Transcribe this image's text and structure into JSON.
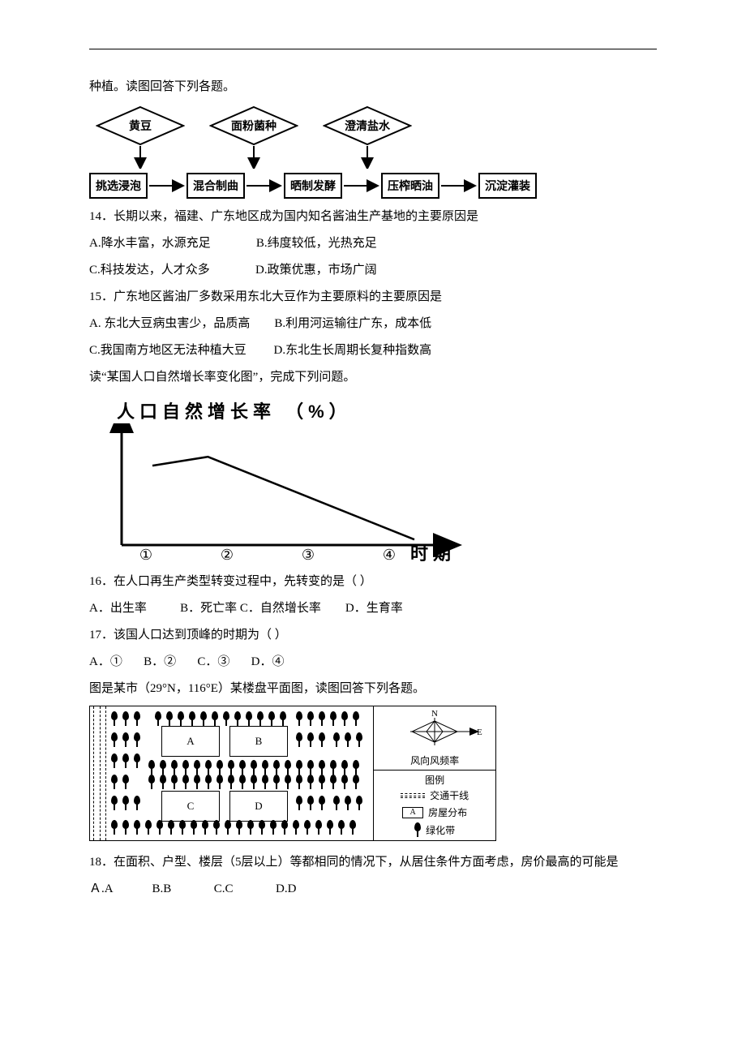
{
  "intro_continued": "种植。读图回答下列各题。",
  "flowchart": {
    "inputs": [
      "黄豆",
      "面粉菌种",
      "澄清盐水"
    ],
    "steps": [
      "挑选浸泡",
      "混合制曲",
      "晒制发酵",
      "压榨晒油",
      "沉淀灌装"
    ]
  },
  "q14": {
    "stem": "14．长期以来，福建、广东地区成为国内知名酱油生产基地的主要原因是",
    "a": "A.降水丰富，水源充足",
    "b": "B.纬度较低，光热充足",
    "c": "C.科技发达，人才众多",
    "d": "D.政策优惠，市场广阔"
  },
  "q15": {
    "stem": "15．广东地区酱油厂多数采用东北大豆作为主要原料的主要原因是",
    "a": "A. 东北大豆病虫害少，品质高",
    "b": "B.利用河运输往广东，成本低",
    "c": "C.我国南方地区无法种植大豆",
    "d": "D.东北生长周期长复种指数高"
  },
  "pop_intro": "读“某国人口自然增长率变化图”，完成下列问题。",
  "pop_chart": {
    "title": "人口自然增长率 （%）",
    "x_ticks": [
      "①",
      "②",
      "③",
      "④"
    ],
    "x_label": "时期",
    "line_color": "#000000",
    "points": [
      {
        "x": 0.1,
        "y": 0.72
      },
      {
        "x": 0.28,
        "y": 0.8
      },
      {
        "x": 0.95,
        "y": 0.05
      }
    ]
  },
  "q16": {
    "stem": "16．在人口再生产类型转变过程中，先转变的是（   ）",
    "a": "A．出生率",
    "b": "B．死亡率",
    "c": "C．自然增长率",
    "d": "D．生育率"
  },
  "q17": {
    "stem": "17．该国人口达到顶峰的时期为（   ）",
    "a": "A．①",
    "b": "B．②",
    "c": "C．③",
    "d": "D．④"
  },
  "site_intro": "图是某市（29°N，116°E）某楼盘平面图，读图回答下列各题。",
  "site": {
    "buildings": [
      "A",
      "B",
      "C",
      "D"
    ],
    "compass": {
      "n": "N",
      "e": "E"
    },
    "wind_label": "风向风频率",
    "legend_title": "图例",
    "legend_road": "交通干线",
    "legend_building": "房屋分布",
    "legend_building_letter": "A",
    "legend_green": "绿化带"
  },
  "q18": {
    "stem": "18．在面积、户型、楼层（5层以上）等都相同的情况下，从居住条件方面考虑，房价最高的可能是",
    "a": "Ａ.A",
    "b": "B.B",
    "c": "C.C",
    "d": "D.D"
  }
}
